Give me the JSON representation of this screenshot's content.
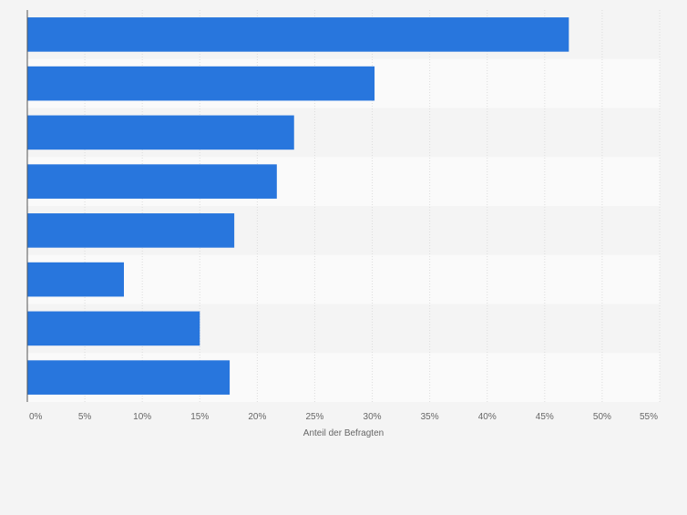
{
  "chart_data": {
    "type": "bar",
    "orientation": "horizontal",
    "title": "",
    "xlabel": "Anteil der Befragten",
    "ylabel": "",
    "xlim": [
      0,
      55
    ],
    "x_ticks": [
      0,
      5,
      10,
      15,
      20,
      25,
      30,
      35,
      40,
      45,
      50,
      55
    ],
    "x_tick_labels": [
      "0%",
      "5%",
      "10%",
      "15%",
      "20%",
      "25%",
      "30%",
      "35%",
      "40%",
      "45%",
      "50%",
      "55%"
    ],
    "categories": [
      "",
      "",
      "",
      "",
      "",
      "",
      "",
      ""
    ],
    "values": [
      47.1,
      30.2,
      23.2,
      21.7,
      18.0,
      8.4,
      15.0,
      17.6
    ],
    "unit": "%",
    "grid": true,
    "bar_color": "#2876dd",
    "row_colors": [
      "#f4f4f4",
      "#fafafa"
    ],
    "gridline_color": "#dcdcdc",
    "axis_color": "#555555"
  }
}
